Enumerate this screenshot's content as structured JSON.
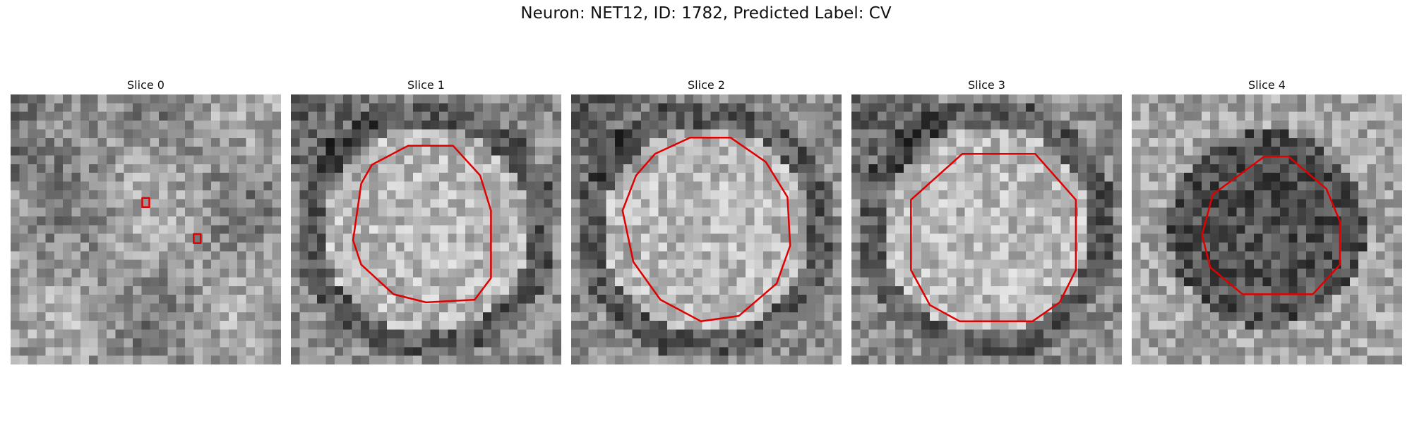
{
  "title": "Neuron: NET12, ID: 1782, Predicted Label: CV",
  "outline_color": "#e00000",
  "panels": [
    {
      "label": "Slice 0",
      "seed": 11,
      "center_brightness": "mixed",
      "outlines": [
        [
          [
            0.487,
            0.383
          ],
          [
            0.513,
            0.383
          ],
          [
            0.513,
            0.417
          ],
          [
            0.487,
            0.417
          ]
        ],
        [
          [
            0.677,
            0.517
          ],
          [
            0.703,
            0.517
          ],
          [
            0.703,
            0.55
          ],
          [
            0.677,
            0.55
          ]
        ]
      ]
    },
    {
      "label": "Slice 1",
      "seed": 23,
      "center_brightness": "bright",
      "outlines": [
        [
          [
            0.433,
            0.19
          ],
          [
            0.6,
            0.19
          ],
          [
            0.7,
            0.3
          ],
          [
            0.74,
            0.43
          ],
          [
            0.74,
            0.68
          ],
          [
            0.68,
            0.76
          ],
          [
            0.5,
            0.77
          ],
          [
            0.38,
            0.74
          ],
          [
            0.26,
            0.63
          ],
          [
            0.23,
            0.54
          ],
          [
            0.26,
            0.33
          ],
          [
            0.3,
            0.26
          ]
        ]
      ]
    },
    {
      "label": "Slice 2",
      "seed": 37,
      "center_brightness": "bright",
      "outlines": [
        [
          [
            0.44,
            0.16
          ],
          [
            0.59,
            0.16
          ],
          [
            0.72,
            0.25
          ],
          [
            0.8,
            0.38
          ],
          [
            0.81,
            0.56
          ],
          [
            0.76,
            0.7
          ],
          [
            0.62,
            0.82
          ],
          [
            0.48,
            0.84
          ],
          [
            0.33,
            0.76
          ],
          [
            0.23,
            0.62
          ],
          [
            0.19,
            0.43
          ],
          [
            0.24,
            0.3
          ],
          [
            0.31,
            0.22
          ]
        ]
      ]
    },
    {
      "label": "Slice 3",
      "seed": 51,
      "center_brightness": "bright",
      "outlines": [
        [
          [
            0.41,
            0.22
          ],
          [
            0.68,
            0.22
          ],
          [
            0.83,
            0.39
          ],
          [
            0.83,
            0.65
          ],
          [
            0.77,
            0.77
          ],
          [
            0.67,
            0.84
          ],
          [
            0.4,
            0.84
          ],
          [
            0.29,
            0.78
          ],
          [
            0.22,
            0.65
          ],
          [
            0.22,
            0.39
          ]
        ]
      ]
    },
    {
      "label": "Slice 4",
      "seed": 67,
      "center_brightness": "dark",
      "outlines": [
        [
          [
            0.49,
            0.23
          ],
          [
            0.58,
            0.23
          ],
          [
            0.72,
            0.35
          ],
          [
            0.77,
            0.47
          ],
          [
            0.77,
            0.63
          ],
          [
            0.67,
            0.74
          ],
          [
            0.41,
            0.74
          ],
          [
            0.29,
            0.64
          ],
          [
            0.26,
            0.52
          ],
          [
            0.3,
            0.37
          ]
        ]
      ]
    }
  ]
}
